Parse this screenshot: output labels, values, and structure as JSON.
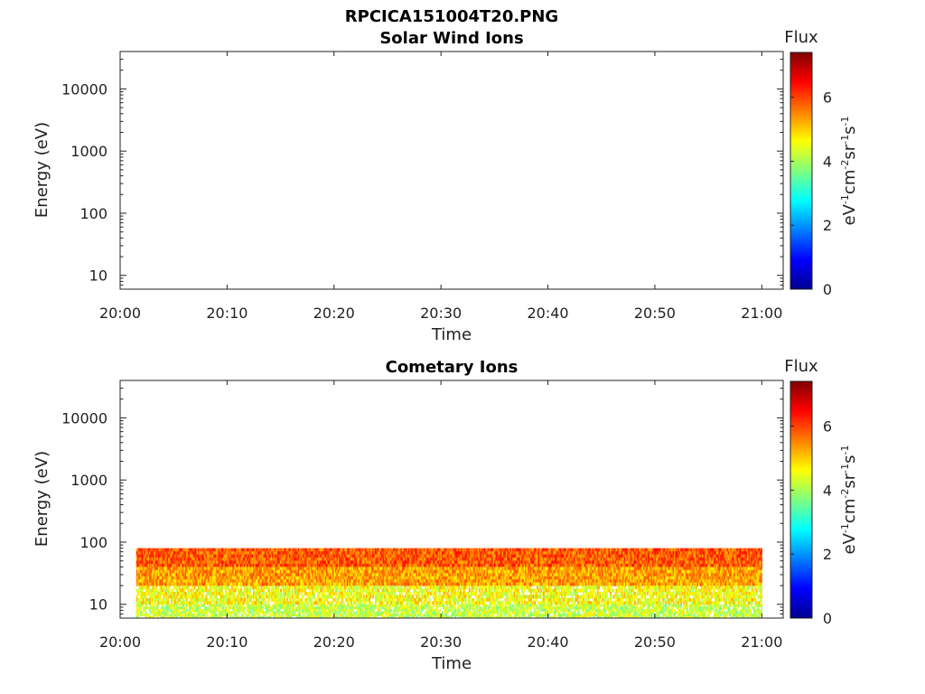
{
  "figure_title": "RPCICA151004T20.PNG",
  "chart_data": [
    {
      "type": "heatmap",
      "title": "Solar Wind Ions",
      "xlabel": "Time",
      "ylabel": "Energy (eV)",
      "yscale": "log",
      "ylim": [
        6,
        40000
      ],
      "xlim": [
        "20:00",
        "21:02"
      ],
      "xticks": [
        "20:00",
        "20:10",
        "20:20",
        "20:30",
        "20:40",
        "20:50",
        "21:00"
      ],
      "yticks": [
        10,
        100,
        1000,
        10000
      ],
      "ytick_labels": [
        "10",
        "100",
        "1000",
        "10000"
      ],
      "colorbar": {
        "label": "Flux",
        "units": "eV-1cm-2sr-1s-1",
        "range": [
          0,
          7.4
        ],
        "ticks": [
          0,
          2,
          4,
          6
        ]
      },
      "data_present": false,
      "grid": false
    },
    {
      "type": "heatmap",
      "title": "Cometary Ions",
      "xlabel": "Time",
      "ylabel": "Energy (eV)",
      "yscale": "log",
      "ylim": [
        6,
        40000
      ],
      "xlim": [
        "20:00",
        "21:02"
      ],
      "xticks": [
        "20:00",
        "20:10",
        "20:20",
        "20:30",
        "20:40",
        "20:50",
        "21:00"
      ],
      "yticks": [
        10,
        100,
        1000,
        10000
      ],
      "ytick_labels": [
        "10",
        "100",
        "1000",
        "10000"
      ],
      "colorbar": {
        "label": "Flux",
        "units": "eV-1cm-2sr-1s-1",
        "range": [
          0,
          7.4
        ],
        "ticks": [
          0,
          2,
          4,
          6
        ]
      },
      "data_present": true,
      "data_time_range": [
        "20:01:30",
        "21:00"
      ],
      "data_energy_range_eV": [
        6,
        80
      ],
      "flux_by_energy_band": [
        {
          "energy_eV": [
            40,
            80
          ],
          "flux": 5.8
        },
        {
          "energy_eV": [
            20,
            40
          ],
          "flux": 5.3
        },
        {
          "energy_eV": [
            10,
            20
          ],
          "flux": 4.6
        },
        {
          "energy_eV": [
            6,
            10
          ],
          "flux": 4.2
        }
      ],
      "grid": false
    }
  ]
}
